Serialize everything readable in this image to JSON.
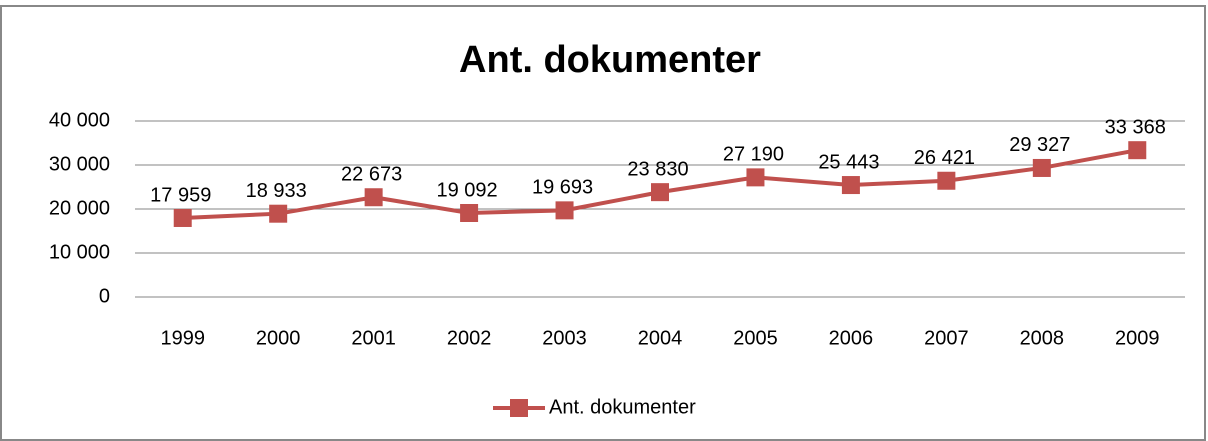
{
  "chart_data": {
    "type": "line",
    "title": "Ant. dokumenter",
    "categories": [
      "1999",
      "2000",
      "2001",
      "2002",
      "2003",
      "2004",
      "2005",
      "2006",
      "2007",
      "2008",
      "2009"
    ],
    "series": [
      {
        "name": "Ant. dokumenter",
        "color": "#c0504d",
        "values": [
          17959,
          18933,
          22673,
          19092,
          19693,
          23830,
          27190,
          25443,
          26421,
          29327,
          33368
        ],
        "value_labels": [
          "17 959",
          "18 933",
          "22 673",
          "19 092",
          "19 693",
          "23 830",
          "27 190",
          "25 443",
          "26 421",
          "29 327",
          "33 368"
        ]
      }
    ],
    "ylim": [
      0,
      40000
    ],
    "yticks": [
      {
        "value": 0,
        "label": "0"
      },
      {
        "value": 10000,
        "label": "10 000"
      },
      {
        "value": 20000,
        "label": "20 000"
      },
      {
        "value": 30000,
        "label": "30 000"
      },
      {
        "value": 40000,
        "label": "40 000"
      }
    ],
    "grid": true,
    "legend": "bottom"
  }
}
